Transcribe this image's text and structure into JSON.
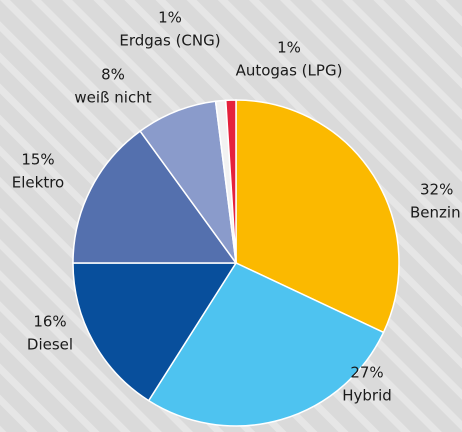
{
  "chart_data": {
    "type": "pie",
    "categories": [
      "Benzin",
      "Hybrid",
      "Diesel",
      "Elektro",
      "weiß nicht",
      "Erdgas (CNG)",
      "Autogas (LPG)"
    ],
    "values": [
      32,
      27,
      16,
      15,
      8,
      1,
      1
    ],
    "value_labels": [
      "32%",
      "27%",
      "16%",
      "15%",
      "8%",
      "1%",
      "1%"
    ],
    "colors": [
      "#fbb900",
      "#4ec3f0",
      "#084f9c",
      "#5470ae",
      "#8a9bcb",
      "#f2f2f2",
      "#e5213c"
    ]
  }
}
